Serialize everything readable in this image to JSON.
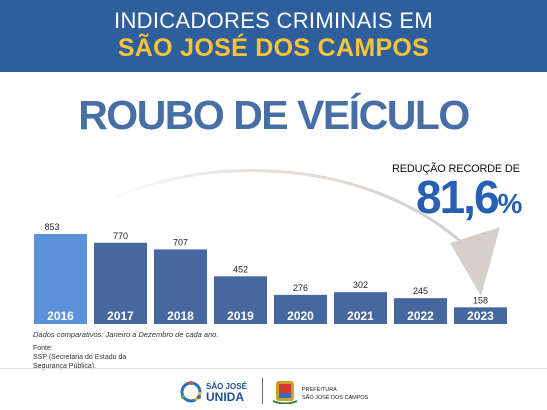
{
  "header": {
    "line1": "INDICADORES CRIMINAIS EM",
    "line2": "SÃO JOSÉ DOS CAMPOS"
  },
  "title": "ROUBO DE VEÍCULO",
  "highlight": {
    "label": "REDUÇÃO RECORDE DE",
    "value": "81,6",
    "unit": "%"
  },
  "chart_data": {
    "type": "bar",
    "title": "ROUBO DE VEÍCULO",
    "categories": [
      "2016",
      "2017",
      "2018",
      "2019",
      "2020",
      "2021",
      "2022",
      "2023"
    ],
    "values": [
      853,
      770,
      707,
      452,
      276,
      302,
      245,
      158
    ],
    "xlabel": "",
    "ylabel": "",
    "ylim": [
      0,
      853
    ],
    "grid": false,
    "legend": "none",
    "colors": {
      "first_bar": "#5a92dc",
      "bars": "#47689f",
      "arrow": "#d8d3cf"
    }
  },
  "footer": {
    "note": "Dados comparativos: Janeiro a Dezembro de cada ano.",
    "source_title": "Fonte:",
    "source_text": "SSP (Secretaria do Estado da Segurança Pública)."
  },
  "logos": {
    "left_line1": "SÃO JOSÉ",
    "left_line2": "UNIDA",
    "right_line1": "PREFEITURA",
    "right_line2": "SÃO JOSÉ DOS CAMPOS"
  }
}
